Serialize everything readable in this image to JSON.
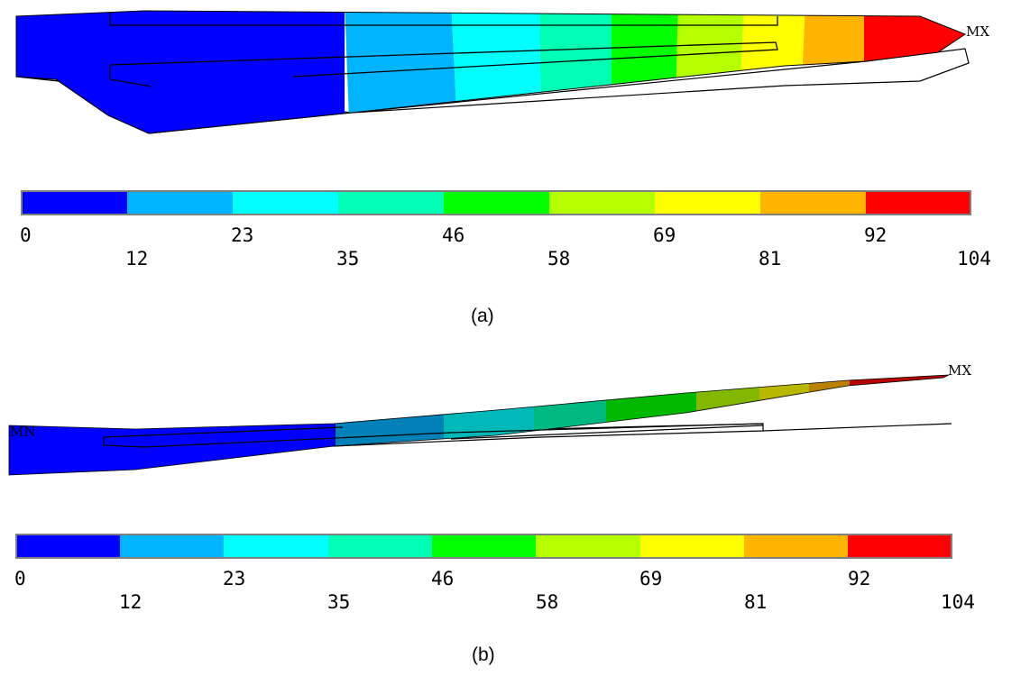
{
  "colors": [
    "#0000ff",
    "#00b4ff",
    "#00ffff",
    "#00ffb4",
    "#00ff00",
    "#b4ff00",
    "#ffff00",
    "#ffb400",
    "#ff0000"
  ],
  "scale": {
    "upper_ticks": [
      "0",
      "23",
      "46",
      "69",
      "92"
    ],
    "lower_ticks": [
      "12",
      "35",
      "58",
      "81",
      "104"
    ]
  },
  "panel_a": {
    "max_marker": "MX",
    "caption": "(a)"
  },
  "panel_b": {
    "min_marker": "MN",
    "max_marker": "MX",
    "caption": "(b)"
  }
}
